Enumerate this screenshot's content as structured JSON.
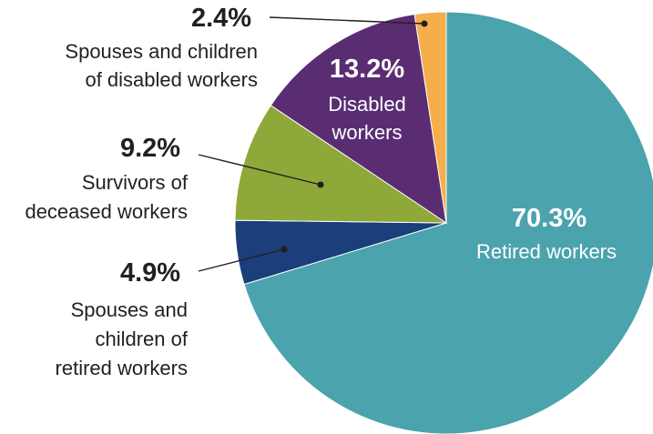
{
  "chart_data": {
    "type": "pie",
    "title": "",
    "slices": [
      {
        "label": "Retired workers",
        "value": 70.3,
        "value_label": "70.3%",
        "color": "#4aa3ad"
      },
      {
        "label": "Spouses and children of retired workers",
        "value": 4.9,
        "value_label": "4.9%",
        "color": "#1a3f7a"
      },
      {
        "label": "Survivors of deceased workers",
        "value": 9.2,
        "value_label": "9.2%",
        "color": "#8ea83a"
      },
      {
        "label": "Disabled workers",
        "value": 13.2,
        "value_label": "13.2%",
        "color": "#5a2d72"
      },
      {
        "label": "Spouses and children of disabled workers",
        "value": 2.4,
        "value_label": "2.4%",
        "color": "#f6ad4c"
      }
    ]
  },
  "labels": {
    "retired": {
      "pct": "70.3%",
      "lines": [
        "Retired workers"
      ]
    },
    "disabled": {
      "pct": "13.2%",
      "lines": [
        "Disabled",
        "workers"
      ]
    },
    "spouses_disabled": {
      "pct": "2.4%",
      "lines": [
        "Spouses and children",
        "of disabled workers"
      ]
    },
    "survivors": {
      "pct": "9.2%",
      "lines": [
        "Survivors of",
        "deceased workers"
      ]
    },
    "spouses_retired": {
      "pct": "4.9%",
      "lines": [
        "Spouses and",
        "children of",
        "retired workers"
      ]
    }
  }
}
